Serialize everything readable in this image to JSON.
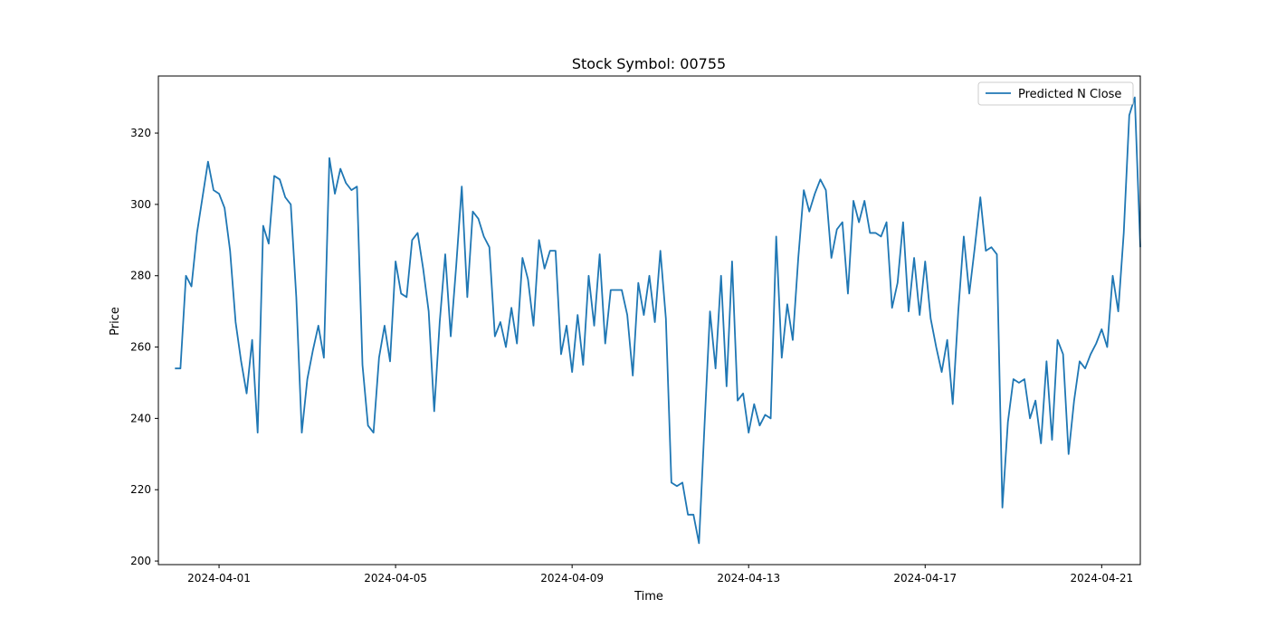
{
  "chart_data": {
    "type": "line",
    "title": "Stock Symbol: 00755",
    "xlabel": "Time",
    "ylabel": "Price",
    "xlim": [
      "2024-03-30T15:00",
      "2024-04-21T21:00"
    ],
    "ylim": [
      199,
      336
    ],
    "x_ticks": [
      "2024-04-01",
      "2024-04-05",
      "2024-04-09",
      "2024-04-13",
      "2024-04-17",
      "2024-04-21"
    ],
    "y_ticks": [
      200,
      220,
      240,
      260,
      280,
      300,
      320
    ],
    "grid": false,
    "legend_position": "top-right",
    "series": [
      {
        "name": "Predicted N Close",
        "color": "#1f77b4",
        "points": [
          [
            "2024-03-31T00:00",
            254
          ],
          [
            "2024-03-31T03:00",
            254
          ],
          [
            "2024-03-31T06:00",
            280
          ],
          [
            "2024-03-31T09:00",
            277
          ],
          [
            "2024-03-31T12:00",
            292
          ],
          [
            "2024-03-31T15:00",
            302
          ],
          [
            "2024-03-31T18:00",
            312
          ],
          [
            "2024-03-31T21:00",
            304
          ],
          [
            "2024-04-01T00:00",
            303
          ],
          [
            "2024-04-01T03:00",
            299
          ],
          [
            "2024-04-01T06:00",
            287
          ],
          [
            "2024-04-01T09:00",
            267
          ],
          [
            "2024-04-01T12:00",
            256
          ],
          [
            "2024-04-01T15:00",
            247
          ],
          [
            "2024-04-01T18:00",
            262
          ],
          [
            "2024-04-01T21:00",
            236
          ],
          [
            "2024-04-02T00:00",
            294
          ],
          [
            "2024-04-02T03:00",
            289
          ],
          [
            "2024-04-02T06:00",
            308
          ],
          [
            "2024-04-02T09:00",
            307
          ],
          [
            "2024-04-02T12:00",
            302
          ],
          [
            "2024-04-02T15:00",
            300
          ],
          [
            "2024-04-02T18:00",
            274
          ],
          [
            "2024-04-02T21:00",
            236
          ],
          [
            "2024-04-03T00:00",
            251
          ],
          [
            "2024-04-03T03:00",
            259
          ],
          [
            "2024-04-03T06:00",
            266
          ],
          [
            "2024-04-03T09:00",
            257
          ],
          [
            "2024-04-03T12:00",
            313
          ],
          [
            "2024-04-03T15:00",
            303
          ],
          [
            "2024-04-03T18:00",
            310
          ],
          [
            "2024-04-03T21:00",
            306
          ],
          [
            "2024-04-04T00:00",
            304
          ],
          [
            "2024-04-04T03:00",
            305
          ],
          [
            "2024-04-04T06:00",
            255
          ],
          [
            "2024-04-04T09:00",
            238
          ],
          [
            "2024-04-04T12:00",
            236
          ],
          [
            "2024-04-04T15:00",
            257
          ],
          [
            "2024-04-04T18:00",
            266
          ],
          [
            "2024-04-04T21:00",
            256
          ],
          [
            "2024-04-05T00:00",
            284
          ],
          [
            "2024-04-05T03:00",
            275
          ],
          [
            "2024-04-05T06:00",
            274
          ],
          [
            "2024-04-05T09:00",
            290
          ],
          [
            "2024-04-05T12:00",
            292
          ],
          [
            "2024-04-05T15:00",
            282
          ],
          [
            "2024-04-05T18:00",
            270
          ],
          [
            "2024-04-05T21:00",
            242
          ],
          [
            "2024-04-06T00:00",
            267
          ],
          [
            "2024-04-06T03:00",
            286
          ],
          [
            "2024-04-06T06:00",
            263
          ],
          [
            "2024-04-06T09:00",
            283
          ],
          [
            "2024-04-06T12:00",
            305
          ],
          [
            "2024-04-06T15:00",
            274
          ],
          [
            "2024-04-06T18:00",
            298
          ],
          [
            "2024-04-06T21:00",
            296
          ],
          [
            "2024-04-07T00:00",
            291
          ],
          [
            "2024-04-07T03:00",
            288
          ],
          [
            "2024-04-07T06:00",
            263
          ],
          [
            "2024-04-07T09:00",
            267
          ],
          [
            "2024-04-07T12:00",
            260
          ],
          [
            "2024-04-07T15:00",
            271
          ],
          [
            "2024-04-07T18:00",
            261
          ],
          [
            "2024-04-07T21:00",
            285
          ],
          [
            "2024-04-08T00:00",
            279
          ],
          [
            "2024-04-08T03:00",
            266
          ],
          [
            "2024-04-08T06:00",
            290
          ],
          [
            "2024-04-08T09:00",
            282
          ],
          [
            "2024-04-08T12:00",
            287
          ],
          [
            "2024-04-08T15:00",
            287
          ],
          [
            "2024-04-08T18:00",
            258
          ],
          [
            "2024-04-08T21:00",
            266
          ],
          [
            "2024-04-09T00:00",
            253
          ],
          [
            "2024-04-09T03:00",
            269
          ],
          [
            "2024-04-09T06:00",
            255
          ],
          [
            "2024-04-09T09:00",
            280
          ],
          [
            "2024-04-09T12:00",
            266
          ],
          [
            "2024-04-09T15:00",
            286
          ],
          [
            "2024-04-09T18:00",
            261
          ],
          [
            "2024-04-09T21:00",
            276
          ],
          [
            "2024-04-10T00:00",
            276
          ],
          [
            "2024-04-10T03:00",
            276
          ],
          [
            "2024-04-10T06:00",
            269
          ],
          [
            "2024-04-10T09:00",
            252
          ],
          [
            "2024-04-10T12:00",
            278
          ],
          [
            "2024-04-10T15:00",
            269
          ],
          [
            "2024-04-10T18:00",
            280
          ],
          [
            "2024-04-10T21:00",
            267
          ],
          [
            "2024-04-11T00:00",
            287
          ],
          [
            "2024-04-11T03:00",
            268
          ],
          [
            "2024-04-11T06:00",
            222
          ],
          [
            "2024-04-11T09:00",
            221
          ],
          [
            "2024-04-11T12:00",
            222
          ],
          [
            "2024-04-11T15:00",
            213
          ],
          [
            "2024-04-11T18:00",
            213
          ],
          [
            "2024-04-11T21:00",
            205
          ],
          [
            "2024-04-12T00:00",
            238
          ],
          [
            "2024-04-12T03:00",
            270
          ],
          [
            "2024-04-12T06:00",
            254
          ],
          [
            "2024-04-12T09:00",
            280
          ],
          [
            "2024-04-12T12:00",
            249
          ],
          [
            "2024-04-12T15:00",
            284
          ],
          [
            "2024-04-12T18:00",
            245
          ],
          [
            "2024-04-12T21:00",
            247
          ],
          [
            "2024-04-13T00:00",
            236
          ],
          [
            "2024-04-13T03:00",
            244
          ],
          [
            "2024-04-13T06:00",
            238
          ],
          [
            "2024-04-13T09:00",
            241
          ],
          [
            "2024-04-13T12:00",
            240
          ],
          [
            "2024-04-13T15:00",
            291
          ],
          [
            "2024-04-13T18:00",
            257
          ],
          [
            "2024-04-13T21:00",
            272
          ],
          [
            "2024-04-14T00:00",
            262
          ],
          [
            "2024-04-14T03:00",
            285
          ],
          [
            "2024-04-14T06:00",
            304
          ],
          [
            "2024-04-14T09:00",
            298
          ],
          [
            "2024-04-14T12:00",
            303
          ],
          [
            "2024-04-14T15:00",
            307
          ],
          [
            "2024-04-14T18:00",
            304
          ],
          [
            "2024-04-14T21:00",
            285
          ],
          [
            "2024-04-15T00:00",
            293
          ],
          [
            "2024-04-15T03:00",
            295
          ],
          [
            "2024-04-15T06:00",
            275
          ],
          [
            "2024-04-15T09:00",
            301
          ],
          [
            "2024-04-15T12:00",
            295
          ],
          [
            "2024-04-15T15:00",
            301
          ],
          [
            "2024-04-15T18:00",
            292
          ],
          [
            "2024-04-15T21:00",
            292
          ],
          [
            "2024-04-16T00:00",
            291
          ],
          [
            "2024-04-16T03:00",
            295
          ],
          [
            "2024-04-16T06:00",
            271
          ],
          [
            "2024-04-16T09:00",
            278
          ],
          [
            "2024-04-16T12:00",
            295
          ],
          [
            "2024-04-16T15:00",
            270
          ],
          [
            "2024-04-16T18:00",
            285
          ],
          [
            "2024-04-16T21:00",
            269
          ],
          [
            "2024-04-17T00:00",
            284
          ],
          [
            "2024-04-17T03:00",
            268
          ],
          [
            "2024-04-17T06:00",
            260
          ],
          [
            "2024-04-17T09:00",
            253
          ],
          [
            "2024-04-17T12:00",
            262
          ],
          [
            "2024-04-17T15:00",
            244
          ],
          [
            "2024-04-17T18:00",
            270
          ],
          [
            "2024-04-17T21:00",
            291
          ],
          [
            "2024-04-18T00:00",
            275
          ],
          [
            "2024-04-18T03:00",
            288
          ],
          [
            "2024-04-18T06:00",
            302
          ],
          [
            "2024-04-18T09:00",
            287
          ],
          [
            "2024-04-18T12:00",
            288
          ],
          [
            "2024-04-18T15:00",
            286
          ],
          [
            "2024-04-18T18:00",
            215
          ],
          [
            "2024-04-18T21:00",
            239
          ],
          [
            "2024-04-19T00:00",
            251
          ],
          [
            "2024-04-19T03:00",
            250
          ],
          [
            "2024-04-19T06:00",
            251
          ],
          [
            "2024-04-19T09:00",
            240
          ],
          [
            "2024-04-19T12:00",
            245
          ],
          [
            "2024-04-19T15:00",
            233
          ],
          [
            "2024-04-19T18:00",
            256
          ],
          [
            "2024-04-19T21:00",
            234
          ],
          [
            "2024-04-20T00:00",
            262
          ],
          [
            "2024-04-20T03:00",
            258
          ],
          [
            "2024-04-20T06:00",
            230
          ],
          [
            "2024-04-20T09:00",
            245
          ],
          [
            "2024-04-20T12:00",
            256
          ],
          [
            "2024-04-20T15:00",
            254
          ],
          [
            "2024-04-20T18:00",
            258
          ],
          [
            "2024-04-20T21:00",
            261
          ],
          [
            "2024-04-21T00:00",
            265
          ],
          [
            "2024-04-21T03:00",
            260
          ],
          [
            "2024-04-21T06:00",
            280
          ],
          [
            "2024-04-21T09:00",
            270
          ],
          [
            "2024-04-21T12:00",
            292
          ],
          [
            "2024-04-21T15:00",
            325
          ],
          [
            "2024-04-21T18:00",
            330
          ],
          [
            "2024-04-21T21:00",
            288
          ]
        ]
      }
    ]
  }
}
